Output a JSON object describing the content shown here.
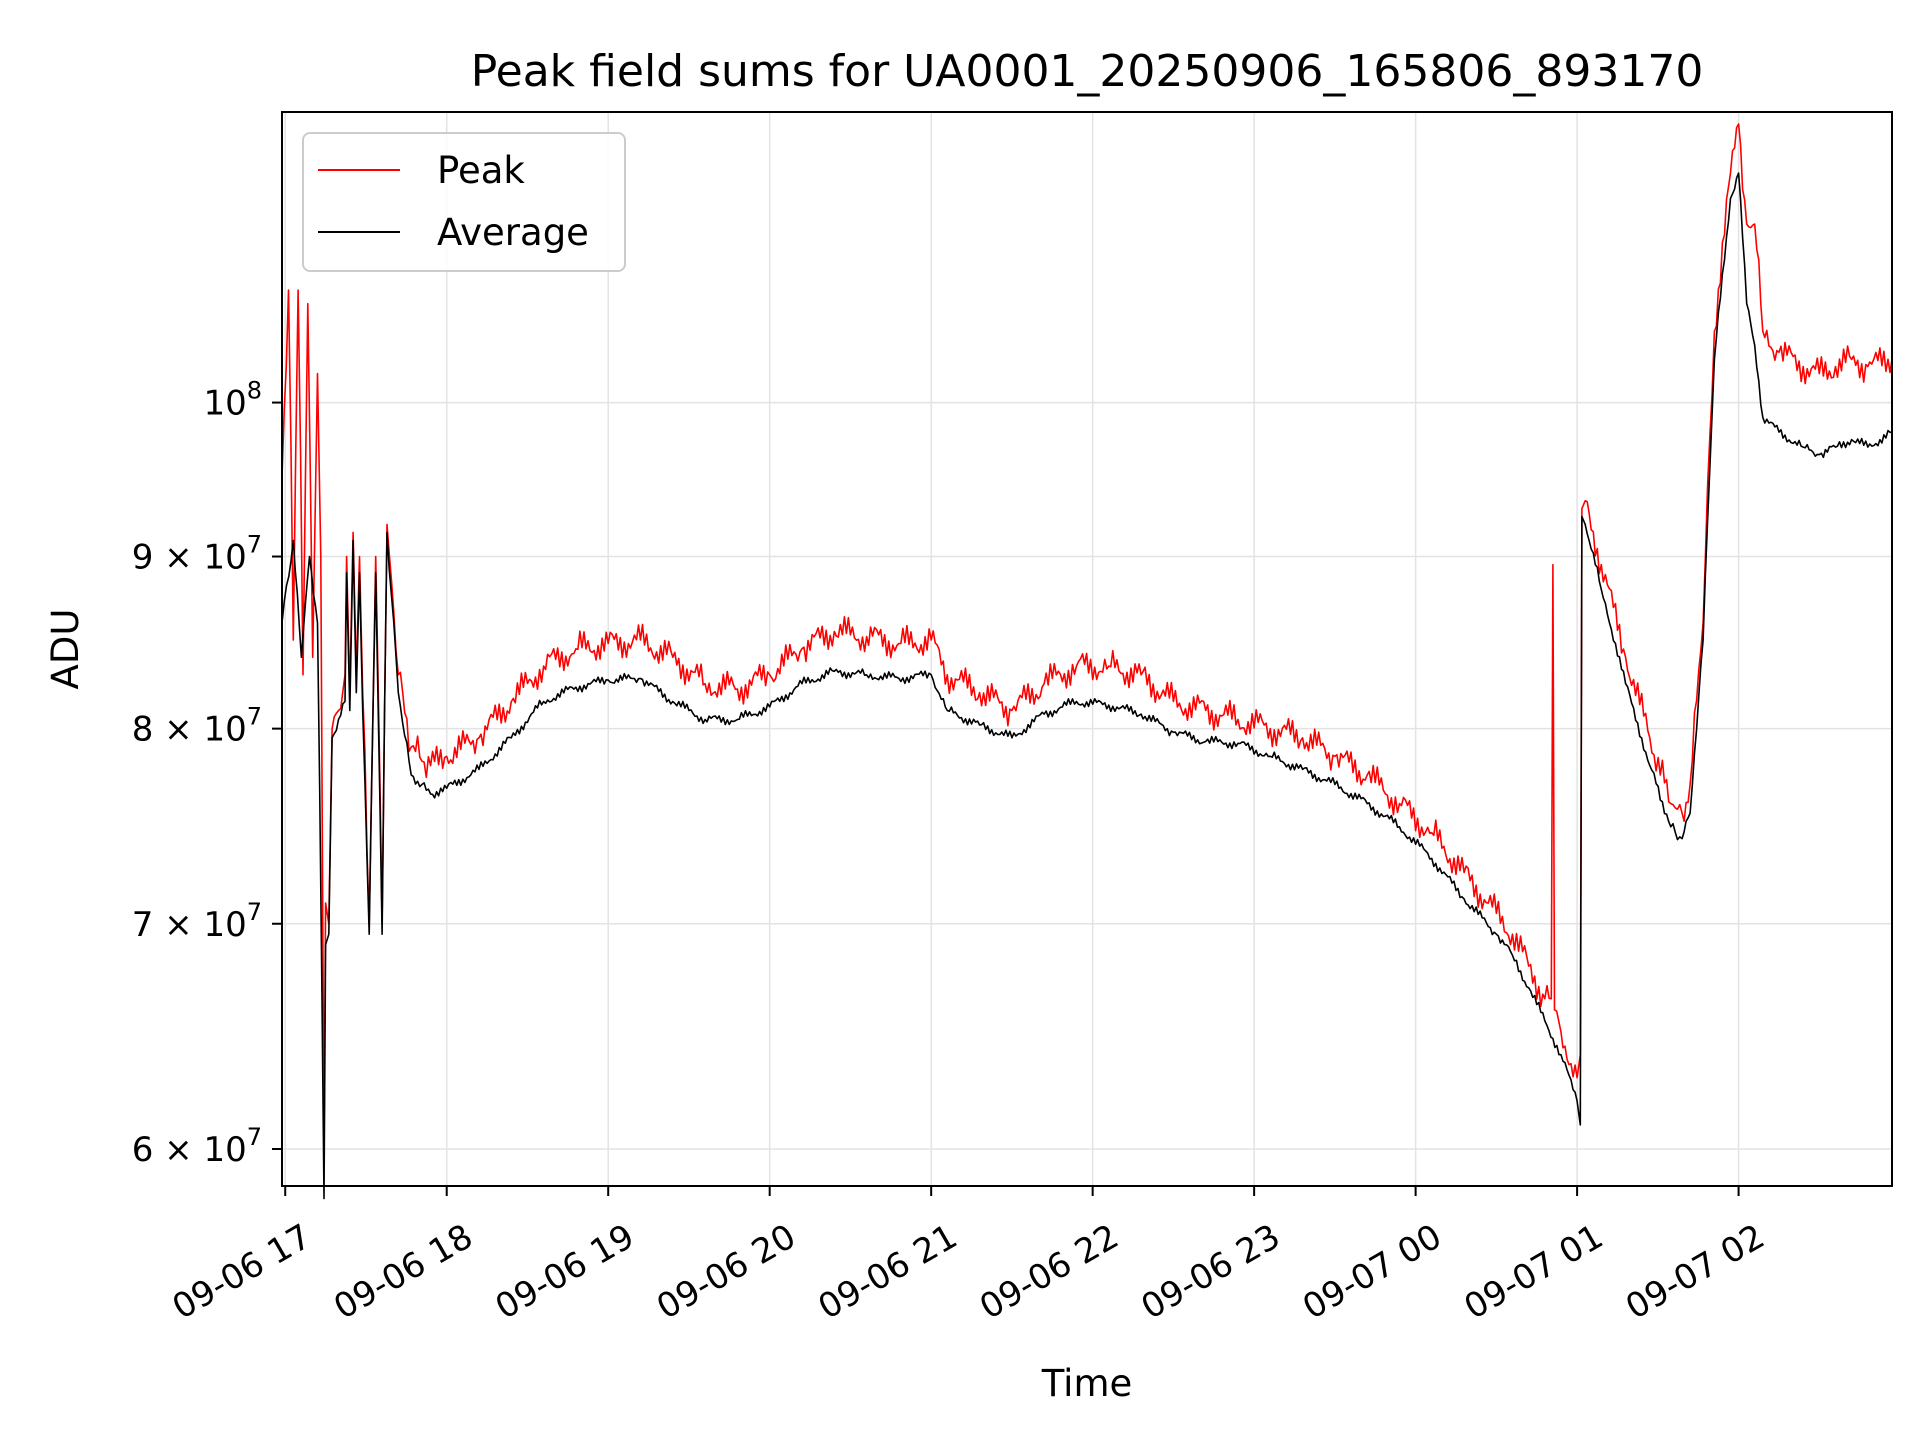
{
  "chart_data": {
    "type": "line",
    "title": "Peak field sums for UA0001_20250906_165806_893170",
    "xlabel": "Time",
    "ylabel": "ADU",
    "yscale": "log",
    "xlim_hours": [
      16.98,
      26.95
    ],
    "ylim": [
      58500000,
      122000000
    ],
    "grid": true,
    "legend_position": "upper-left",
    "x_ticks": [
      {
        "hour": 17,
        "label": "09-06 17"
      },
      {
        "hour": 18,
        "label": "09-06 18"
      },
      {
        "hour": 19,
        "label": "09-06 19"
      },
      {
        "hour": 20,
        "label": "09-06 20"
      },
      {
        "hour": 21,
        "label": "09-06 21"
      },
      {
        "hour": 22,
        "label": "09-06 22"
      },
      {
        "hour": 23,
        "label": "09-06 23"
      },
      {
        "hour": 24,
        "label": "09-07 00"
      },
      {
        "hour": 25,
        "label": "09-07 01"
      },
      {
        "hour": 26,
        "label": "09-07 02"
      }
    ],
    "y_ticks": [
      {
        "value": 60000000,
        "base": "6 × 10",
        "exp": "7"
      },
      {
        "value": 70000000,
        "base": "7 × 10",
        "exp": "7"
      },
      {
        "value": 80000000,
        "base": "8 × 10",
        "exp": "7"
      },
      {
        "value": 90000000,
        "base": "9 × 10",
        "exp": "7"
      },
      {
        "value": 100000000,
        "base": "10",
        "exp": "8"
      }
    ],
    "series": [
      {
        "name": "Peak",
        "color": "#ff0000",
        "points": [
          [
            16.98,
            95000000.0
          ],
          [
            17.02,
            108000000.0
          ],
          [
            17.05,
            85000000.0
          ],
          [
            17.08,
            108000000.0
          ],
          [
            17.11,
            83000000.0
          ],
          [
            17.14,
            107000000.0
          ],
          [
            17.17,
            84000000.0
          ],
          [
            17.2,
            102000000.0
          ],
          [
            17.22,
            90000000.0
          ],
          [
            17.24,
            60000000.0
          ],
          [
            17.25,
            71000000.0
          ],
          [
            17.27,
            70000000.0
          ],
          [
            17.29,
            80000000.0
          ],
          [
            17.33,
            81000000.0
          ],
          [
            17.37,
            83000000.0
          ],
          [
            17.38,
            90000000.0
          ],
          [
            17.4,
            82000000.0
          ],
          [
            17.42,
            91500000.0
          ],
          [
            17.44,
            83000000.0
          ],
          [
            17.46,
            90000000.0
          ],
          [
            17.48,
            82000000.0
          ],
          [
            17.52,
            70000000.0
          ],
          [
            17.56,
            90000000.0
          ],
          [
            17.6,
            70000000.0
          ],
          [
            17.63,
            92000000.0
          ],
          [
            17.7,
            83000000.0
          ],
          [
            17.78,
            79000000.0
          ],
          [
            17.9,
            78000000.0
          ],
          [
            18.0,
            78500000.0
          ],
          [
            18.2,
            79500000.0
          ],
          [
            18.4,
            81500000.0
          ],
          [
            18.6,
            83500000.0
          ],
          [
            18.8,
            84500000.0
          ],
          [
            19.0,
            84800000.0
          ],
          [
            19.2,
            85000000.0
          ],
          [
            19.4,
            84000000.0
          ],
          [
            19.6,
            82500000.0
          ],
          [
            19.8,
            82200000.0
          ],
          [
            20.0,
            83000000.0
          ],
          [
            20.2,
            84500000.0
          ],
          [
            20.4,
            85500000.0
          ],
          [
            20.6,
            85200000.0
          ],
          [
            20.8,
            84800000.0
          ],
          [
            21.0,
            85000000.0
          ],
          [
            21.1,
            83000000.0
          ],
          [
            21.3,
            82000000.0
          ],
          [
            21.5,
            81000000.0
          ],
          [
            21.7,
            82500000.0
          ],
          [
            21.9,
            83500000.0
          ],
          [
            22.1,
            83500000.0
          ],
          [
            22.3,
            83000000.0
          ],
          [
            22.5,
            81500000.0
          ],
          [
            22.7,
            81000000.0
          ],
          [
            22.9,
            80500000.0
          ],
          [
            23.1,
            80000000.0
          ],
          [
            23.3,
            79500000.0
          ],
          [
            23.5,
            78500000.0
          ],
          [
            23.7,
            77500000.0
          ],
          [
            23.9,
            76000000.0
          ],
          [
            24.1,
            74500000.0
          ],
          [
            24.3,
            72500000.0
          ],
          [
            24.5,
            70500000.0
          ],
          [
            24.6,
            69500000.0
          ],
          [
            24.7,
            68000000.0
          ],
          [
            24.8,
            66500000.0
          ],
          [
            24.84,
            66500000.0
          ],
          [
            24.85,
            89500000.0
          ],
          [
            24.86,
            66000000.0
          ],
          [
            24.9,
            65000000.0
          ],
          [
            25.0,
            63000000.0
          ],
          [
            25.02,
            64000000.0
          ],
          [
            25.03,
            93000000.0
          ],
          [
            25.05,
            93500000.0
          ],
          [
            25.15,
            89500000.0
          ],
          [
            25.3,
            84000000.0
          ],
          [
            25.45,
            79500000.0
          ],
          [
            25.58,
            76000000.0
          ],
          [
            25.65,
            75500000.0
          ],
          [
            25.7,
            77000000.0
          ],
          [
            25.78,
            86000000.0
          ],
          [
            25.85,
            105000000.0
          ],
          [
            25.95,
            117000000.0
          ],
          [
            26.0,
            121000000.0
          ],
          [
            26.05,
            113000000.0
          ],
          [
            26.1,
            113000000.0
          ],
          [
            26.15,
            105000000.0
          ],
          [
            26.25,
            103500000.0
          ],
          [
            26.4,
            102500000.0
          ],
          [
            26.5,
            102000000.0
          ],
          [
            26.6,
            102500000.0
          ],
          [
            26.7,
            103000000.0
          ],
          [
            26.8,
            102500000.0
          ],
          [
            26.95,
            103000000.0
          ]
        ]
      },
      {
        "name": "Average",
        "color": "#000000",
        "points": [
          [
            16.98,
            86000000.0
          ],
          [
            17.05,
            91000000.0
          ],
          [
            17.1,
            84000000.0
          ],
          [
            17.15,
            90000000.0
          ],
          [
            17.2,
            86000000.0
          ],
          [
            17.24,
            58000000.0
          ],
          [
            17.25,
            69000000.0
          ],
          [
            17.27,
            69500000.0
          ],
          [
            17.29,
            79500000.0
          ],
          [
            17.33,
            80500000.0
          ],
          [
            17.37,
            81500000.0
          ],
          [
            17.38,
            89000000.0
          ],
          [
            17.4,
            81000000.0
          ],
          [
            17.42,
            91000000.0
          ],
          [
            17.44,
            82000000.0
          ],
          [
            17.46,
            89000000.0
          ],
          [
            17.48,
            81000000.0
          ],
          [
            17.52,
            69500000.0
          ],
          [
            17.56,
            89000000.0
          ],
          [
            17.6,
            69500000.0
          ],
          [
            17.63,
            91500000.0
          ],
          [
            17.7,
            82000000.0
          ],
          [
            17.78,
            77500000.0
          ],
          [
            17.9,
            76500000.0
          ],
          [
            18.0,
            76800000.0
          ],
          [
            18.2,
            77800000.0
          ],
          [
            18.4,
            79500000.0
          ],
          [
            18.6,
            81500000.0
          ],
          [
            18.8,
            82300000.0
          ],
          [
            19.0,
            82700000.0
          ],
          [
            19.2,
            82800000.0
          ],
          [
            19.4,
            81500000.0
          ],
          [
            19.6,
            80500000.0
          ],
          [
            19.8,
            80500000.0
          ],
          [
            20.0,
            81200000.0
          ],
          [
            20.2,
            82500000.0
          ],
          [
            20.4,
            83200000.0
          ],
          [
            20.6,
            83000000.0
          ],
          [
            20.8,
            82800000.0
          ],
          [
            21.0,
            83000000.0
          ],
          [
            21.1,
            81000000.0
          ],
          [
            21.3,
            80200000.0
          ],
          [
            21.5,
            79500000.0
          ],
          [
            21.7,
            80800000.0
          ],
          [
            21.9,
            81500000.0
          ],
          [
            22.1,
            81300000.0
          ],
          [
            22.3,
            80800000.0
          ],
          [
            22.5,
            79800000.0
          ],
          [
            22.7,
            79300000.0
          ],
          [
            22.9,
            79200000.0
          ],
          [
            23.1,
            78500000.0
          ],
          [
            23.3,
            77800000.0
          ],
          [
            23.5,
            77000000.0
          ],
          [
            23.7,
            76000000.0
          ],
          [
            23.9,
            74800000.0
          ],
          [
            24.1,
            73200000.0
          ],
          [
            24.3,
            71200000.0
          ],
          [
            24.5,
            69500000.0
          ],
          [
            24.6,
            68500000.0
          ],
          [
            24.7,
            67000000.0
          ],
          [
            24.8,
            65500000.0
          ],
          [
            24.9,
            64000000.0
          ],
          [
            25.0,
            62000000.0
          ],
          [
            25.02,
            61000000.0
          ],
          [
            25.03,
            92500000.0
          ],
          [
            25.05,
            92000000.0
          ],
          [
            25.15,
            88000000.0
          ],
          [
            25.3,
            82500000.0
          ],
          [
            25.45,
            78000000.0
          ],
          [
            25.58,
            74800000.0
          ],
          [
            25.65,
            74200000.0
          ],
          [
            25.7,
            75500000.0
          ],
          [
            25.78,
            85000000.0
          ],
          [
            25.85,
            103000000.0
          ],
          [
            25.95,
            115000000.0
          ],
          [
            26.0,
            117000000.0
          ],
          [
            26.05,
            107000000.0
          ],
          [
            26.1,
            104000000.0
          ],
          [
            26.15,
            99000000.0
          ],
          [
            26.25,
            98000000.0
          ],
          [
            26.4,
            97000000.0
          ],
          [
            26.5,
            96500000.0
          ],
          [
            26.6,
            97000000.0
          ],
          [
            26.7,
            97500000.0
          ],
          [
            26.8,
            97000000.0
          ],
          [
            26.95,
            98000000.0
          ]
        ]
      }
    ]
  }
}
